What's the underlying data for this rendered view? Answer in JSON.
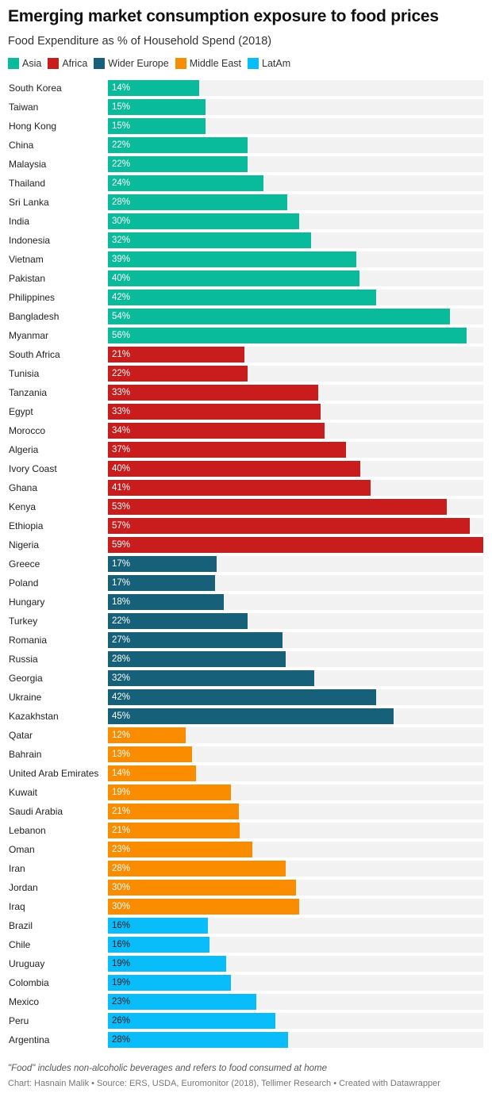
{
  "title": "Emerging market consumption exposure to food prices",
  "subtitle": "Food Expenditure as % of Household Spend (2018)",
  "note": "\"Food\" includes non-alcoholic beverages and refers to food consumed at home",
  "credit": "Chart: Hasnain Malik • Source: ERS, USDA, Euromonitor (2018), Tellimer Research • Created with Datawrapper",
  "chart_data": {
    "type": "bar",
    "orientation": "horizontal",
    "xlim": [
      0,
      59
    ],
    "grid": false,
    "legend_placement": "top-left",
    "value_suffix": "%",
    "legend": [
      {
        "name": "Asia",
        "color": "#0abb9b"
      },
      {
        "name": "Africa",
        "color": "#c91d1d"
      },
      {
        "name": "Wider Europe",
        "color": "#16607a"
      },
      {
        "name": "Middle East",
        "color": "#fa8c00"
      },
      {
        "name": "LatAm",
        "color": "#09bcfa"
      }
    ],
    "rows": [
      {
        "label": "South Korea",
        "value": 14.4,
        "display": "14%",
        "group": "Asia"
      },
      {
        "label": "Taiwan",
        "value": 15.4,
        "display": "15%",
        "group": "Asia"
      },
      {
        "label": "Hong Kong",
        "value": 15.4,
        "display": "15%",
        "group": "Asia"
      },
      {
        "label": "China",
        "value": 22.0,
        "display": "22%",
        "group": "Asia"
      },
      {
        "label": "Malaysia",
        "value": 21.9,
        "display": "22%",
        "group": "Asia"
      },
      {
        "label": "Thailand",
        "value": 24.5,
        "display": "24%",
        "group": "Asia"
      },
      {
        "label": "Sri Lanka",
        "value": 28.2,
        "display": "28%",
        "group": "Asia"
      },
      {
        "label": "India",
        "value": 30.0,
        "display": "30%",
        "group": "Asia"
      },
      {
        "label": "Indonesia",
        "value": 31.9,
        "display": "32%",
        "group": "Asia"
      },
      {
        "label": "Vietnam",
        "value": 39.0,
        "display": "39%",
        "group": "Asia"
      },
      {
        "label": "Pakistan",
        "value": 39.6,
        "display": "40%",
        "group": "Asia"
      },
      {
        "label": "Philippines",
        "value": 42.1,
        "display": "42%",
        "group": "Asia"
      },
      {
        "label": "Bangladesh",
        "value": 53.8,
        "display": "54%",
        "group": "Asia"
      },
      {
        "label": "Myanmar",
        "value": 56.4,
        "display": "56%",
        "group": "Asia"
      },
      {
        "label": "South Africa",
        "value": 21.4,
        "display": "21%",
        "group": "Africa"
      },
      {
        "label": "Tunisia",
        "value": 21.9,
        "display": "22%",
        "group": "Africa"
      },
      {
        "label": "Tanzania",
        "value": 33.1,
        "display": "33%",
        "group": "Africa"
      },
      {
        "label": "Egypt",
        "value": 33.4,
        "display": "33%",
        "group": "Africa"
      },
      {
        "label": "Morocco",
        "value": 34.0,
        "display": "34%",
        "group": "Africa"
      },
      {
        "label": "Algeria",
        "value": 37.4,
        "display": "37%",
        "group": "Africa"
      },
      {
        "label": "Ivory Coast",
        "value": 39.7,
        "display": "40%",
        "group": "Africa"
      },
      {
        "label": "Ghana",
        "value": 41.3,
        "display": "41%",
        "group": "Africa"
      },
      {
        "label": "Kenya",
        "value": 53.2,
        "display": "53%",
        "group": "Africa"
      },
      {
        "label": "Ethiopia",
        "value": 56.9,
        "display": "57%",
        "group": "Africa"
      },
      {
        "label": "Nigeria",
        "value": 59.0,
        "display": "59%",
        "group": "Africa"
      },
      {
        "label": "Greece",
        "value": 17.1,
        "display": "17%",
        "group": "Wider Europe"
      },
      {
        "label": "Poland",
        "value": 16.8,
        "display": "17%",
        "group": "Wider Europe"
      },
      {
        "label": "Hungary",
        "value": 18.2,
        "display": "18%",
        "group": "Wider Europe"
      },
      {
        "label": "Turkey",
        "value": 21.9,
        "display": "22%",
        "group": "Wider Europe"
      },
      {
        "label": "Romania",
        "value": 27.4,
        "display": "27%",
        "group": "Wider Europe"
      },
      {
        "label": "Russia",
        "value": 28.0,
        "display": "28%",
        "group": "Wider Europe"
      },
      {
        "label": "Georgia",
        "value": 32.4,
        "display": "32%",
        "group": "Wider Europe"
      },
      {
        "label": "Ukraine",
        "value": 42.2,
        "display": "42%",
        "group": "Wider Europe"
      },
      {
        "label": "Kazakhstan",
        "value": 44.9,
        "display": "45%",
        "group": "Wider Europe"
      },
      {
        "label": "Qatar",
        "value": 12.2,
        "display": "12%",
        "group": "Middle East"
      },
      {
        "label": "Bahrain",
        "value": 13.2,
        "display": "13%",
        "group": "Middle East"
      },
      {
        "label": "United Arab Emirates",
        "value": 13.8,
        "display": "14%",
        "group": "Middle East"
      },
      {
        "label": "Kuwait",
        "value": 19.3,
        "display": "19%",
        "group": "Middle East"
      },
      {
        "label": "Saudi Arabia",
        "value": 20.6,
        "display": "21%",
        "group": "Middle East"
      },
      {
        "label": "Lebanon",
        "value": 20.7,
        "display": "21%",
        "group": "Middle East"
      },
      {
        "label": "Oman",
        "value": 22.7,
        "display": "23%",
        "group": "Middle East"
      },
      {
        "label": "Iran",
        "value": 27.9,
        "display": "28%",
        "group": "Middle East"
      },
      {
        "label": "Jordan",
        "value": 29.6,
        "display": "30%",
        "group": "Middle East"
      },
      {
        "label": "Iraq",
        "value": 30.1,
        "display": "30%",
        "group": "Middle East"
      },
      {
        "label": "Brazil",
        "value": 15.7,
        "display": "16%",
        "group": "LatAm"
      },
      {
        "label": "Chile",
        "value": 16.0,
        "display": "16%",
        "group": "LatAm"
      },
      {
        "label": "Uruguay",
        "value": 18.6,
        "display": "19%",
        "group": "LatAm"
      },
      {
        "label": "Colombia",
        "value": 19.3,
        "display": "19%",
        "group": "LatAm"
      },
      {
        "label": "Mexico",
        "value": 23.3,
        "display": "23%",
        "group": "LatAm"
      },
      {
        "label": "Peru",
        "value": 26.3,
        "display": "26%",
        "group": "LatAm"
      },
      {
        "label": "Argentina",
        "value": 28.3,
        "display": "28%",
        "group": "LatAm"
      }
    ]
  }
}
